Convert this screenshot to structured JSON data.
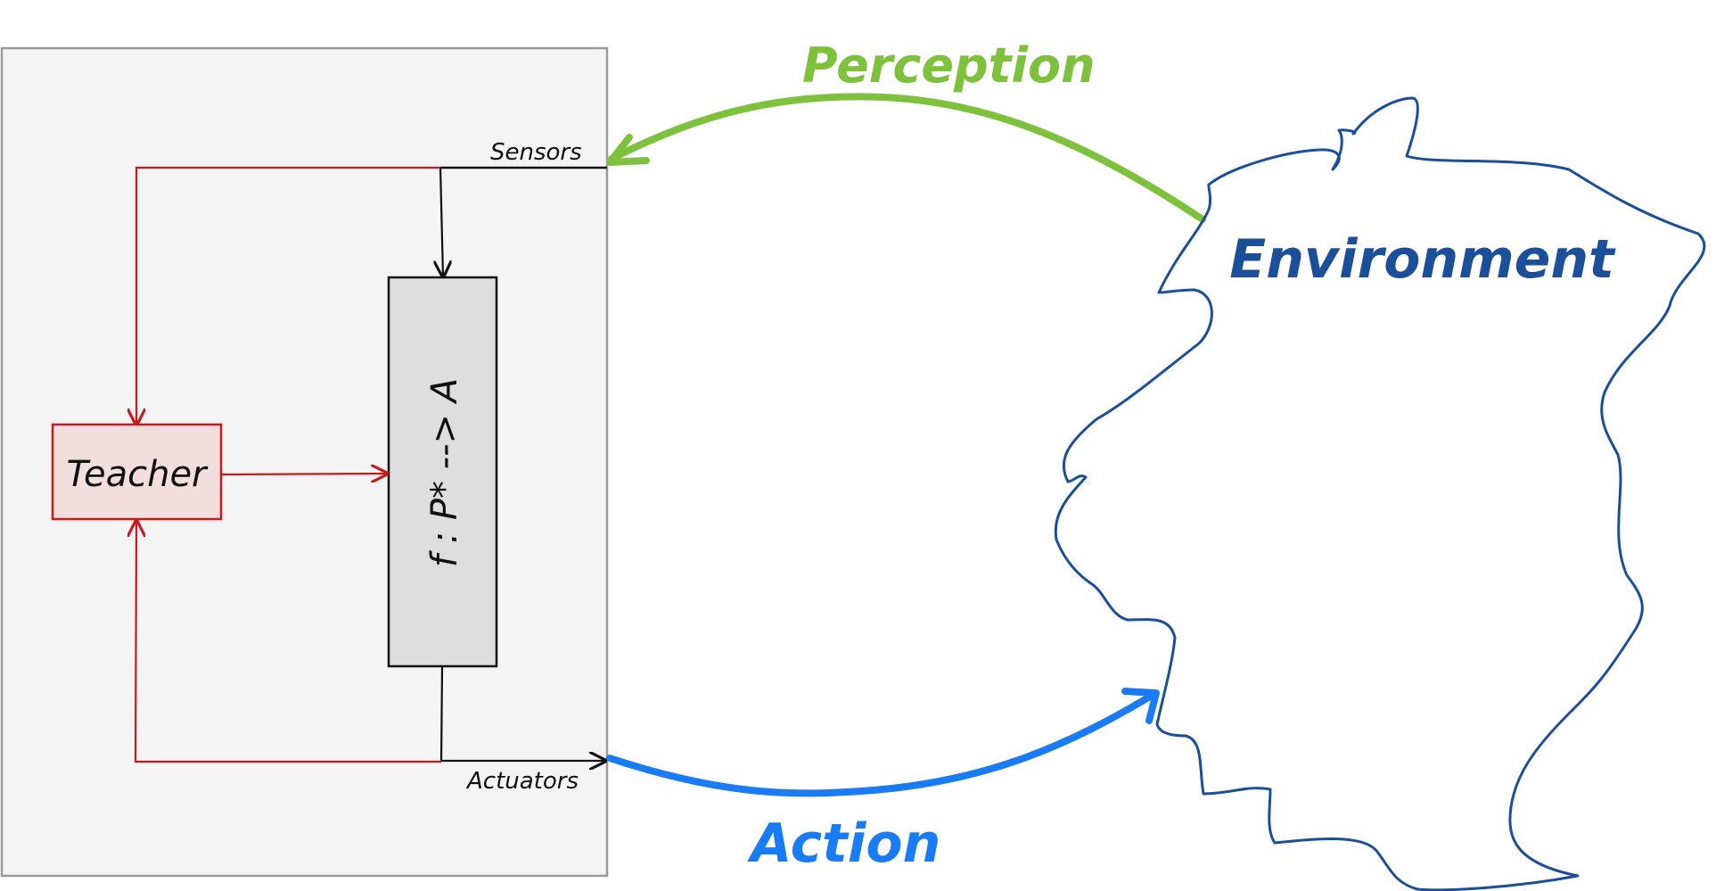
{
  "agent": {
    "sensors_label": "Sensors",
    "actuators_label": "Actuators",
    "teacher_label": "Teacher",
    "function_label": "f : P* --> A"
  },
  "environment": {
    "label": "Environment"
  },
  "flows": {
    "perception_label": "Perception",
    "action_label": "Action"
  },
  "colors": {
    "agent_fill": "#f4f4f4",
    "agent_border": "#9a9a9a",
    "function_fill": "#dedede",
    "teacher_fill": "#f3dede",
    "teacher_border": "#c8191c",
    "feedback_line": "#c8191c",
    "perception": "#7dc13c",
    "action": "#1a7cf5",
    "environment": "#1b4f9a"
  }
}
